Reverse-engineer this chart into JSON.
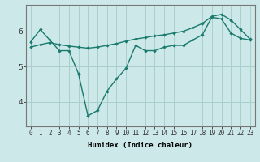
{
  "xlabel": "Humidex (Indice chaleur)",
  "bg_color": "#cce8e8",
  "plot_bg_color": "#cce8e8",
  "line_color": "#1a7a6e",
  "grid_color": "#aacfcf",
  "line1_x": [
    0,
    1,
    2,
    3,
    4,
    5,
    6,
    7,
    8,
    9,
    10,
    11,
    12,
    13,
    14,
    15,
    16,
    17,
    18,
    19,
    20,
    21,
    22,
    23
  ],
  "line1_y": [
    5.7,
    6.05,
    5.75,
    5.45,
    5.45,
    4.8,
    3.6,
    3.75,
    4.3,
    4.65,
    4.95,
    5.6,
    5.45,
    5.45,
    5.55,
    5.6,
    5.6,
    5.75,
    5.9,
    6.4,
    6.35,
    5.95,
    5.8,
    5.75
  ],
  "line2_x": [
    0,
    1,
    2,
    3,
    4,
    5,
    6,
    7,
    8,
    9,
    10,
    11,
    12,
    13,
    14,
    15,
    16,
    17,
    18,
    19,
    20,
    21,
    22,
    23
  ],
  "line2_y": [
    5.55,
    5.62,
    5.68,
    5.62,
    5.58,
    5.55,
    5.52,
    5.55,
    5.6,
    5.65,
    5.72,
    5.78,
    5.82,
    5.87,
    5.9,
    5.95,
    6.0,
    6.1,
    6.22,
    6.42,
    6.48,
    6.32,
    6.05,
    5.78
  ],
  "ylim": [
    3.3,
    6.75
  ],
  "xlim": [
    -0.5,
    23.5
  ],
  "yticks": [
    4,
    5,
    6
  ],
  "xtick_labels": [
    "0",
    "1",
    "2",
    "3",
    "4",
    "5",
    "6",
    "7",
    "8",
    "9",
    "10",
    "11",
    "12",
    "13",
    "14",
    "15",
    "16",
    "17",
    "18",
    "19",
    "20",
    "21",
    "22",
    "23"
  ],
  "marker": "D",
  "markersize": 2.2,
  "linewidth": 1.0,
  "axis_fontsize": 6.5,
  "tick_fontsize": 5.5
}
